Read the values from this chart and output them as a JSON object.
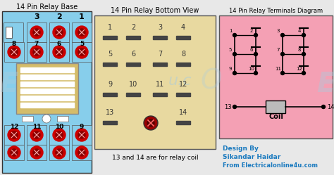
{
  "title_left": "14 Pin Relay Base",
  "title_middle": "14 Pin Relay Bottom View",
  "title_right": "14 Pin Relay Terminals Diagram",
  "bg_color": "#e8e8e8",
  "left_bg": "#87ceeb",
  "middle_bg": "#e8d9a0",
  "right_bg": "#f4a0b4",
  "watermark_color": "#aaccdd",
  "design_text_1": "Design By",
  "design_text_2": "Sikandar Haidar",
  "design_text_3": "From Electricalonline4u.com",
  "bottom_note": "13 and 14 are for relay coil",
  "design_color": "#1a7abf",
  "coil_label": "Coil",
  "red_dark": "#cc0000",
  "red_darker": "#880000",
  "relay_body_bg": "#d4bc6a",
  "relay_bar_color": "white"
}
